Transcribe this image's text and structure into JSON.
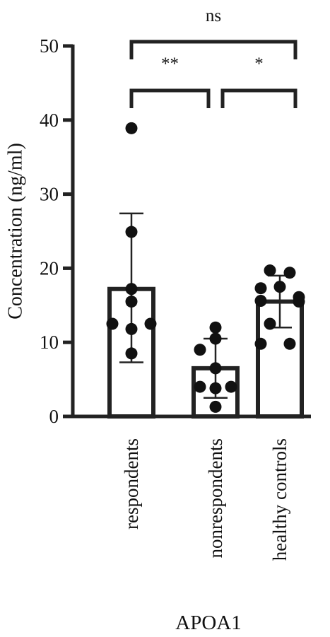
{
  "chart_data": {
    "type": "bar",
    "title": "",
    "xlabel": "APOA1",
    "ylabel": "Concentration (ng/ml)",
    "ylim": [
      0,
      50
    ],
    "yticks": [
      0,
      10,
      20,
      30,
      40,
      50
    ],
    "grid": false,
    "categories": [
      "respondents",
      "nonrespondents",
      "healthy controls"
    ],
    "values": [
      17.2,
      6.5,
      15.5
    ],
    "error_low": [
      7.3,
      2.5,
      12.0
    ],
    "error_high": [
      27.4,
      10.5,
      19.0
    ],
    "points": [
      [
        38.9,
        24.9,
        17.2,
        15.5,
        12.5,
        12.5,
        11.8,
        8.5
      ],
      [
        12.0,
        10.5,
        9.0,
        6.5,
        4.0,
        4.0,
        3.8,
        1.3
      ],
      [
        19.7,
        19.4,
        17.3,
        17.5,
        16.1,
        15.6,
        15.5,
        12.5,
        9.8,
        9.8
      ]
    ],
    "significance": [
      {
        "from": 0,
        "to": 1,
        "label": "**"
      },
      {
        "from": 1,
        "to": 2,
        "label": "*"
      },
      {
        "from": 0,
        "to": 2,
        "label": "ns"
      }
    ],
    "colors": {
      "bar_fill": "#ffffff",
      "bar_stroke": "#222222",
      "point": "#111111"
    }
  }
}
